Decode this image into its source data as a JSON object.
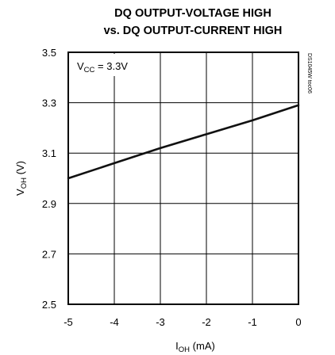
{
  "chart_data": {
    "type": "line",
    "title_line1": "DQ OUTPUT-VOLTAGE HIGH",
    "title_line2": "vs. DQ OUTPUT-CURRENT HIGH",
    "xlabel": {
      "main": "I",
      "sub": "OH",
      "unit": " (mA)"
    },
    "ylabel": {
      "main": "V",
      "sub": "OH",
      "unit": " (V)"
    },
    "xlim": [
      -5,
      0
    ],
    "ylim": [
      2.5,
      3.5
    ],
    "x_ticks": [
      -5,
      -4,
      -3,
      -2,
      -1,
      0
    ],
    "x_tick_labels": [
      "-5",
      "-4",
      "-3",
      "-2",
      "-1",
      "0"
    ],
    "y_ticks": [
      2.5,
      2.7,
      2.9,
      3.1,
      3.3,
      3.5
    ],
    "y_tick_labels": [
      "2.5",
      "2.7",
      "2.9",
      "3.1",
      "3.3",
      "3.5"
    ],
    "grid": true,
    "annotation": {
      "main": "V",
      "sub": "CC",
      "value": " = 3.3V"
    },
    "figure_code": "DS1045W toc06",
    "series": [
      {
        "x": [
          -5,
          -4,
          -3,
          -2,
          -1,
          0
        ],
        "y": [
          3.0,
          3.06,
          3.12,
          3.175,
          3.23,
          3.29
        ]
      }
    ]
  }
}
